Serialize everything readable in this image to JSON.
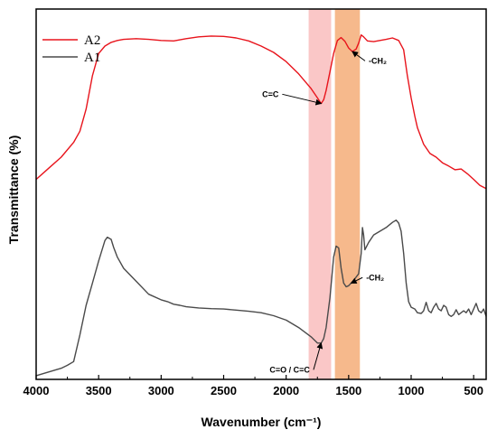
{
  "chart_data": {
    "type": "line",
    "title": "",
    "xlabel": "Wavenumber (cm⁻¹)",
    "ylabel": "Transmittance (%)",
    "xlim": [
      4000,
      400
    ],
    "x_reversed": true,
    "x_ticks": [
      4000,
      3500,
      3000,
      2500,
      2000,
      1500,
      1000,
      500
    ],
    "y_ticks_shown": false,
    "ylim": [
      0,
      100
    ],
    "grid": false,
    "legend_position": "top-left",
    "series": [
      {
        "name": "A2",
        "color": "#e8141c",
        "points": [
          [
            4000,
            54
          ],
          [
            3900,
            57
          ],
          [
            3800,
            60
          ],
          [
            3700,
            64
          ],
          [
            3650,
            67
          ],
          [
            3600,
            73
          ],
          [
            3550,
            82
          ],
          [
            3500,
            88
          ],
          [
            3450,
            90
          ],
          [
            3400,
            91
          ],
          [
            3350,
            91.5
          ],
          [
            3300,
            91.8
          ],
          [
            3200,
            92
          ],
          [
            3100,
            91.8
          ],
          [
            3000,
            91.5
          ],
          [
            2900,
            91.4
          ],
          [
            2800,
            92
          ],
          [
            2700,
            92.5
          ],
          [
            2600,
            92.7
          ],
          [
            2500,
            92.6
          ],
          [
            2400,
            92.2
          ],
          [
            2300,
            91.4
          ],
          [
            2200,
            90
          ],
          [
            2100,
            88.3
          ],
          [
            2000,
            85.8
          ],
          [
            1900,
            82.5
          ],
          [
            1800,
            78.5
          ],
          [
            1750,
            76
          ],
          [
            1720,
            74.5
          ],
          [
            1700,
            75.5
          ],
          [
            1680,
            78
          ],
          [
            1650,
            83
          ],
          [
            1620,
            88
          ],
          [
            1590,
            91.5
          ],
          [
            1560,
            92.3
          ],
          [
            1530,
            91.3
          ],
          [
            1500,
            89.5
          ],
          [
            1470,
            88.5
          ],
          [
            1440,
            89.2
          ],
          [
            1420,
            90.8
          ],
          [
            1400,
            93
          ],
          [
            1380,
            92.5
          ],
          [
            1350,
            91.4
          ],
          [
            1300,
            91.2
          ],
          [
            1250,
            91.5
          ],
          [
            1200,
            91.8
          ],
          [
            1150,
            92.2
          ],
          [
            1100,
            91.5
          ],
          [
            1060,
            89
          ],
          [
            1030,
            82
          ],
          [
            1000,
            76
          ],
          [
            970,
            71
          ],
          [
            950,
            68
          ],
          [
            900,
            63.5
          ],
          [
            850,
            61
          ],
          [
            800,
            60
          ],
          [
            750,
            58.5
          ],
          [
            700,
            57.6
          ],
          [
            650,
            56.6
          ],
          [
            600,
            56.8
          ],
          [
            550,
            55.5
          ],
          [
            500,
            54
          ],
          [
            450,
            52.4
          ],
          [
            400,
            51.5
          ]
        ]
      },
      {
        "name": "A1",
        "color": "#4a4a4a",
        "points": [
          [
            4000,
            1
          ],
          [
            3900,
            2
          ],
          [
            3800,
            3
          ],
          [
            3750,
            3.8
          ],
          [
            3700,
            4.8
          ],
          [
            3650,
            12
          ],
          [
            3600,
            20
          ],
          [
            3550,
            26
          ],
          [
            3500,
            32
          ],
          [
            3450,
            37.5
          ],
          [
            3430,
            38.4
          ],
          [
            3400,
            37.8
          ],
          [
            3380,
            35.6
          ],
          [
            3350,
            33
          ],
          [
            3300,
            30
          ],
          [
            3200,
            26.5
          ],
          [
            3100,
            23
          ],
          [
            3000,
            21.5
          ],
          [
            2950,
            21
          ],
          [
            2900,
            20.3
          ],
          [
            2850,
            20
          ],
          [
            2800,
            19.6
          ],
          [
            2700,
            19.3
          ],
          [
            2600,
            19.1
          ],
          [
            2500,
            19
          ],
          [
            2400,
            18.7
          ],
          [
            2300,
            18.4
          ],
          [
            2200,
            18
          ],
          [
            2100,
            17.2
          ],
          [
            2000,
            16
          ],
          [
            1900,
            14
          ],
          [
            1800,
            11.5
          ],
          [
            1750,
            9.8
          ],
          [
            1720,
            9.8
          ],
          [
            1700,
            11
          ],
          [
            1680,
            14
          ],
          [
            1650,
            22
          ],
          [
            1620,
            33
          ],
          [
            1600,
            36
          ],
          [
            1580,
            35.5
          ],
          [
            1560,
            30
          ],
          [
            1540,
            26
          ],
          [
            1520,
            25
          ],
          [
            1500,
            25.3
          ],
          [
            1480,
            26
          ],
          [
            1450,
            27.2
          ],
          [
            1420,
            28.5
          ],
          [
            1400,
            34
          ],
          [
            1390,
            41
          ],
          [
            1380,
            39
          ],
          [
            1370,
            35
          ],
          [
            1340,
            37
          ],
          [
            1300,
            39
          ],
          [
            1250,
            40
          ],
          [
            1200,
            41
          ],
          [
            1150,
            42.4
          ],
          [
            1120,
            43
          ],
          [
            1100,
            42.2
          ],
          [
            1080,
            40
          ],
          [
            1060,
            34
          ],
          [
            1040,
            26
          ],
          [
            1020,
            21
          ],
          [
            1000,
            19.5
          ],
          [
            970,
            19
          ],
          [
            950,
            18
          ],
          [
            920,
            17.8
          ],
          [
            900,
            18.5
          ],
          [
            880,
            20.8
          ],
          [
            860,
            18.5
          ],
          [
            840,
            18
          ],
          [
            820,
            19.5
          ],
          [
            800,
            20.5
          ],
          [
            780,
            19
          ],
          [
            760,
            18.5
          ],
          [
            740,
            20
          ],
          [
            720,
            19.5
          ],
          [
            700,
            17.5
          ],
          [
            680,
            17
          ],
          [
            660,
            17.5
          ],
          [
            640,
            18.8
          ],
          [
            620,
            17.5
          ],
          [
            600,
            18
          ],
          [
            580,
            18.5
          ],
          [
            560,
            18
          ],
          [
            540,
            19
          ],
          [
            520,
            17.5
          ],
          [
            500,
            19
          ],
          [
            480,
            20.5
          ],
          [
            460,
            18.5
          ],
          [
            440,
            18
          ],
          [
            420,
            19
          ],
          [
            400,
            17
          ]
        ]
      }
    ],
    "highlight_bands": [
      {
        "x_from": 1820,
        "x_to": 1640,
        "color": "#f7a9a9",
        "opacity": 0.65
      },
      {
        "x_from": 1610,
        "x_to": 1410,
        "color": "#f3a166",
        "opacity": 0.75
      }
    ],
    "annotations": [
      {
        "text": "C=C",
        "point": [
          1720,
          74.5
        ],
        "label_at": [
          2060,
          77
        ],
        "anchor": "end"
      },
      {
        "text": "-CH₂",
        "point": [
          1470,
          88.5
        ],
        "label_at": [
          1340,
          86
        ],
        "anchor": "start"
      },
      {
        "text": "-CH₂",
        "point": [
          1480,
          26
        ],
        "label_at": [
          1360,
          27.5
        ],
        "anchor": "start"
      },
      {
        "text": "C=O / C=C",
        "point": [
          1720,
          9.8
        ],
        "label_at": [
          1810,
          2.6
        ],
        "anchor": "end"
      }
    ]
  }
}
